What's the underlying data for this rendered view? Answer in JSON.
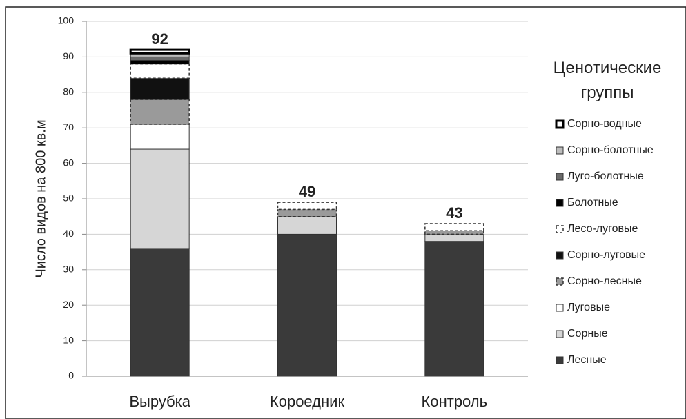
{
  "chart_data": {
    "type": "stacked-bar",
    "y_label": "Число видов на 800 кв.м",
    "legend_title": "Ценотические группы",
    "categories": [
      "Вырубка",
      "Короедник",
      "Контроль"
    ],
    "series": [
      {
        "name": "Лесные",
        "color": "#3a3a3a",
        "outline": "solid",
        "values": [
          36,
          40,
          38
        ]
      },
      {
        "name": "Сорные",
        "color": "#d6d6d6",
        "outline": "solid",
        "values": [
          28,
          5,
          2
        ]
      },
      {
        "name": "Луговые",
        "color": "#ffffff",
        "outline": "solid",
        "values": [
          7,
          0,
          0
        ]
      },
      {
        "name": "Сорно-лесные",
        "color": "#9a9a9a",
        "outline": "dashed",
        "values": [
          7,
          2,
          1
        ]
      },
      {
        "name": "Сорно-луговые",
        "color": "#111111",
        "outline": "solid",
        "values": [
          6,
          0,
          0
        ]
      },
      {
        "name": "Лесо-луговые",
        "color": "#ffffff",
        "outline": "dashed",
        "values": [
          4,
          2,
          2
        ]
      },
      {
        "name": "Болотные",
        "color": "#000000",
        "outline": "solid",
        "values": [
          1,
          0,
          0
        ]
      },
      {
        "name": "Луго-болотные",
        "color": "#6a6a6a",
        "outline": "solid",
        "values": [
          1,
          0,
          0
        ]
      },
      {
        "name": "Сорно-болотные",
        "color": "#bdbdbd",
        "outline": "solid",
        "values": [
          1,
          0,
          0
        ]
      },
      {
        "name": "Сорно-водные",
        "color": "#ffffff",
        "outline": "thick",
        "values": [
          1,
          0,
          0
        ]
      }
    ],
    "totals": [
      92,
      49,
      43
    ],
    "ylim": [
      0,
      100
    ],
    "yticks": [
      0,
      10,
      20,
      30,
      40,
      50,
      60,
      70,
      80,
      90,
      100
    ],
    "grid": true
  }
}
